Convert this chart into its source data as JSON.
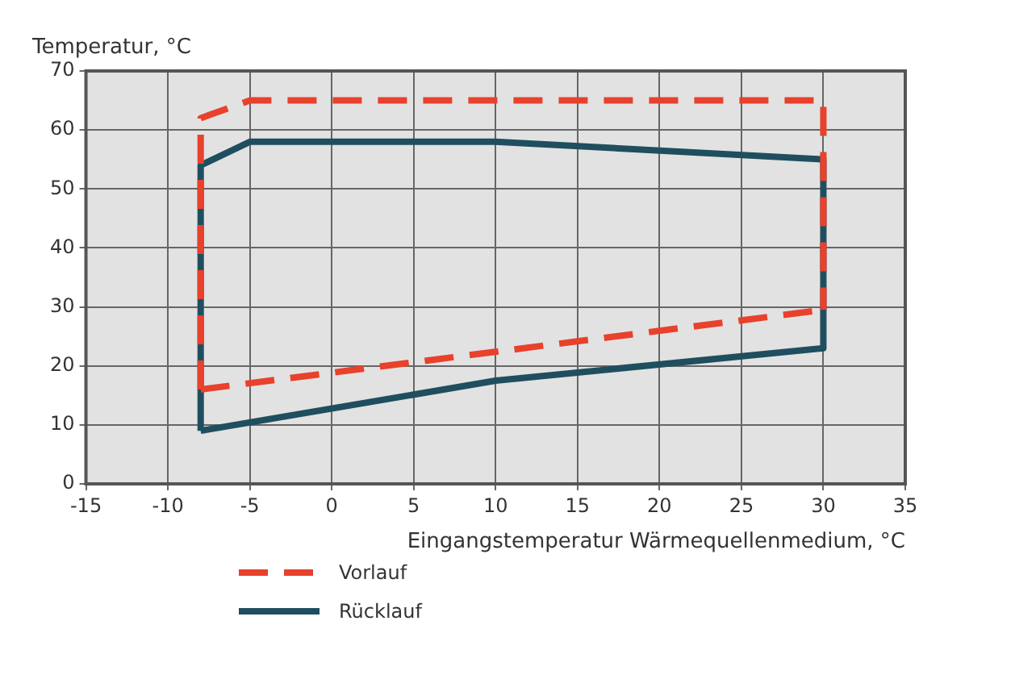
{
  "chart_data": {
    "type": "line",
    "xlabel": "Eingangstemperatur Wärmequellenmedium, °C",
    "ylabel": "Temperatur, °C",
    "xlim": [
      -15,
      35
    ],
    "xticks": [
      -15,
      -10,
      -5,
      0,
      5,
      10,
      15,
      20,
      25,
      30,
      35
    ],
    "ylim": [
      0,
      70
    ],
    "yticks": [
      0,
      10,
      20,
      30,
      40,
      50,
      60,
      70
    ],
    "grid": true,
    "legend": "bottom left",
    "marker": "none",
    "series": [
      {
        "name": "Vorlauf",
        "color": "#e8412c",
        "line_style": "dashed",
        "x": [
          -8,
          -8,
          -5,
          30,
          30
        ],
        "values": [
          16,
          62,
          65,
          65,
          29.5
        ]
      },
      {
        "color": "#e8412c",
        "line_style": "dashed",
        "x": [
          -8,
          30
        ],
        "values": [
          16,
          29.5
        ]
      },
      {
        "name": "Rücklauf",
        "color": "#1f4e5f",
        "line_style": "solid",
        "x": [
          -8,
          -8,
          -5,
          10,
          30,
          30
        ],
        "values": [
          9,
          54,
          58,
          58,
          55,
          23
        ]
      },
      {
        "color": "#1f4e5f",
        "line_style": "solid",
        "x": [
          -8,
          10,
          30
        ],
        "values": [
          9,
          17.5,
          23
        ]
      }
    ]
  }
}
